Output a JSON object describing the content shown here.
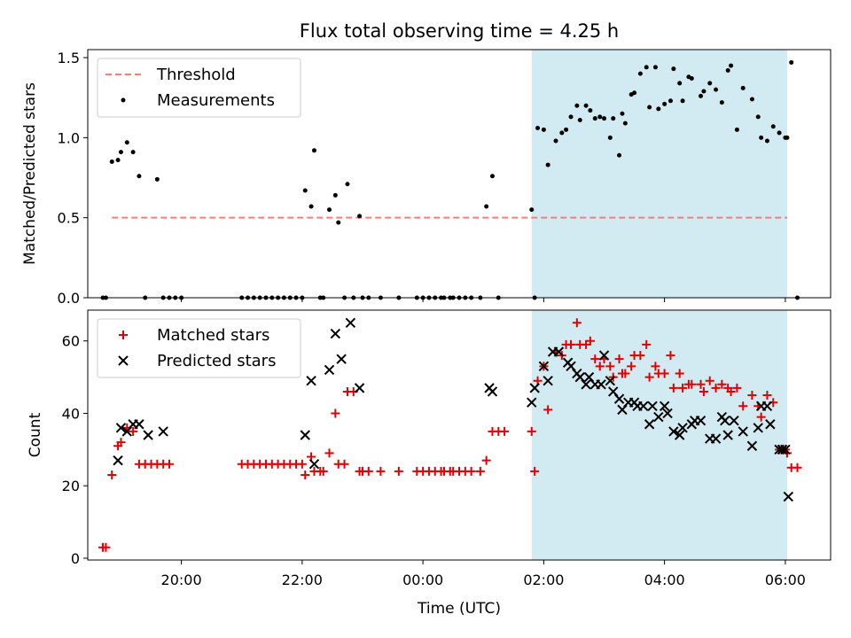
{
  "title": "Flux total observing time = 4.25 h",
  "colors": {
    "threshold": "#f08080",
    "measurement": "#000000",
    "matched": "#e00000",
    "predicted": "#000000",
    "shade": "#add8e6"
  },
  "chart_data": [
    {
      "type": "scatter",
      "panel": "top",
      "ylabel": "Matched/Predicted stars",
      "ylim": [
        0,
        1.55
      ],
      "yticks": [
        "0.0",
        "0.5",
        "1.0",
        "1.5"
      ],
      "xlim": [
        18.45,
        30.75
      ],
      "shaded_region": [
        25.8,
        30.03
      ],
      "legend": {
        "position": "top-left",
        "threshold_label": "Threshold",
        "measurements_label": "Measurements"
      },
      "series": [
        {
          "name": "Threshold",
          "kind": "dashed-line",
          "x": [
            18.85,
            30.03
          ],
          "y": [
            0.5,
            0.5
          ]
        },
        {
          "name": "Measurements",
          "kind": "points",
          "x": [
            18.7,
            18.75,
            18.85,
            18.95,
            19.0,
            19.1,
            19.2,
            19.3,
            19.4,
            19.6,
            19.7,
            19.8,
            19.9,
            20.0,
            21.0,
            21.1,
            21.2,
            21.3,
            21.4,
            21.5,
            21.6,
            21.7,
            21.8,
            21.9,
            22.0,
            22.05,
            22.15,
            22.2,
            22.3,
            22.35,
            22.45,
            22.55,
            22.6,
            22.7,
            22.75,
            22.85,
            22.95,
            23.0,
            23.1,
            23.3,
            23.6,
            23.9,
            24.0,
            24.1,
            24.2,
            24.3,
            24.35,
            24.45,
            24.5,
            24.6,
            24.7,
            24.8,
            24.95,
            25.05,
            25.15,
            25.25,
            25.8,
            25.85,
            25.9,
            26.0,
            26.07,
            26.2,
            26.3,
            26.37,
            26.45,
            26.55,
            26.6,
            26.7,
            26.77,
            26.85,
            26.93,
            27.0,
            27.1,
            27.15,
            27.25,
            27.3,
            27.35,
            27.45,
            27.5,
            27.6,
            27.7,
            27.75,
            27.85,
            27.9,
            28.0,
            28.1,
            28.15,
            28.25,
            28.3,
            28.4,
            28.45,
            28.6,
            28.65,
            28.75,
            28.85,
            28.95,
            29.05,
            29.1,
            29.2,
            29.3,
            29.45,
            29.55,
            29.6,
            29.7,
            29.8,
            29.9,
            30.0,
            30.03,
            30.1,
            30.2
          ],
          "y": [
            0,
            0,
            0.85,
            0.86,
            0.91,
            0.97,
            0.91,
            0.76,
            0,
            0.74,
            0,
            0,
            0,
            0,
            0,
            0,
            0,
            0,
            0,
            0,
            0,
            0,
            0,
            0,
            0,
            0.67,
            0.57,
            0.92,
            0,
            0,
            0.55,
            0.64,
            0.47,
            0,
            0.71,
            0,
            0.51,
            0,
            0,
            0,
            0,
            0,
            0,
            0,
            0,
            0,
            0,
            0,
            0,
            0,
            0,
            0,
            0,
            0.57,
            0.76,
            0,
            0.55,
            0,
            1.06,
            1.05,
            0.83,
            0.98,
            1.03,
            1.05,
            1.13,
            1.2,
            1.11,
            1.2,
            1.17,
            1.12,
            1.13,
            1.12,
            1.0,
            1.12,
            0.89,
            1.15,
            1.09,
            1.27,
            1.28,
            1.4,
            1.44,
            1.19,
            1.44,
            1.18,
            1.21,
            1.23,
            1.43,
            1.34,
            1.23,
            1.38,
            1.37,
            1.26,
            1.29,
            1.34,
            1.3,
            1.22,
            1.42,
            1.45,
            1.05,
            1.31,
            1.24,
            1.13,
            1.0,
            0.98,
            1.07,
            1.03,
            1.0,
            1.0,
            1.47,
            0
          ]
        }
      ]
    },
    {
      "type": "scatter",
      "panel": "bottom",
      "ylabel": "Count",
      "xlabel": "Time (UTC)",
      "ylim": [
        -0.5,
        68.5
      ],
      "yticks": [
        "0",
        "20",
        "40",
        "60"
      ],
      "xticks": [
        "20:00",
        "22:00",
        "00:00",
        "02:00",
        "04:00",
        "06:00"
      ],
      "xtick_values": [
        20,
        22,
        24,
        26,
        28,
        30
      ],
      "xlim": [
        18.45,
        30.75
      ],
      "shaded_region": [
        25.8,
        30.03
      ],
      "legend": {
        "position": "top-left",
        "matched_label": "Matched stars",
        "predicted_label": "Predicted stars"
      },
      "series": [
        {
          "name": "Matched stars",
          "kind": "plus",
          "x": [
            18.7,
            18.75,
            18.85,
            18.95,
            19.0,
            19.1,
            19.2,
            19.3,
            19.4,
            19.5,
            19.6,
            19.7,
            19.8,
            21.0,
            21.1,
            21.2,
            21.3,
            21.4,
            21.5,
            21.6,
            21.7,
            21.8,
            21.9,
            22.0,
            22.05,
            22.15,
            22.2,
            22.3,
            22.35,
            22.45,
            22.55,
            22.6,
            22.7,
            22.75,
            22.85,
            22.95,
            23.0,
            23.1,
            23.3,
            23.6,
            23.9,
            24.0,
            24.1,
            24.2,
            24.3,
            24.35,
            24.45,
            24.5,
            24.6,
            24.7,
            24.8,
            24.95,
            25.05,
            25.15,
            25.25,
            25.35,
            25.8,
            25.85,
            25.9,
            26.0,
            26.07,
            26.2,
            26.3,
            26.37,
            26.45,
            26.55,
            26.6,
            26.7,
            26.77,
            26.85,
            26.93,
            27.0,
            27.1,
            27.15,
            27.25,
            27.3,
            27.35,
            27.45,
            27.5,
            27.6,
            27.7,
            27.75,
            27.85,
            27.9,
            28.0,
            28.1,
            28.15,
            28.25,
            28.3,
            28.4,
            28.45,
            28.6,
            28.65,
            28.75,
            28.85,
            28.95,
            29.05,
            29.1,
            29.2,
            29.3,
            29.45,
            29.55,
            29.6,
            29.7,
            29.8,
            29.9,
            30.0,
            30.03,
            30.1,
            30.2
          ],
          "y": [
            3,
            3,
            23,
            31,
            32,
            36,
            35,
            26,
            26,
            26,
            26,
            26,
            26,
            26,
            26,
            26,
            26,
            26,
            26,
            26,
            26,
            26,
            26,
            26,
            23,
            28,
            24,
            24,
            24,
            29,
            40,
            26,
            26,
            46,
            46,
            24,
            24,
            24,
            24,
            24,
            24,
            24,
            24,
            24,
            24,
            24,
            24,
            24,
            24,
            24,
            24,
            24,
            27,
            35,
            35,
            35,
            35,
            24,
            49,
            53,
            41,
            57,
            56,
            59,
            59,
            65,
            59,
            59,
            60,
            55,
            53,
            55,
            53,
            50,
            55,
            51,
            51,
            53,
            56,
            56,
            59,
            50,
            53,
            51,
            51,
            56,
            47,
            51,
            47,
            48,
            48,
            48,
            46,
            49,
            47,
            48,
            47,
            46,
            47,
            42,
            45,
            42,
            39,
            45,
            43,
            30,
            30,
            29,
            25,
            25
          ]
        },
        {
          "name": "Predicted stars",
          "kind": "cross",
          "x": [
            18.95,
            19.0,
            19.1,
            19.2,
            19.3,
            19.45,
            19.7,
            22.05,
            22.15,
            22.2,
            22.45,
            22.55,
            22.65,
            22.8,
            22.95,
            25.1,
            25.15,
            25.8,
            25.85,
            26.0,
            26.07,
            26.15,
            26.25,
            26.4,
            26.45,
            26.55,
            26.6,
            26.7,
            26.75,
            26.85,
            26.95,
            27.0,
            27.1,
            27.15,
            27.25,
            27.3,
            27.4,
            27.5,
            27.55,
            27.65,
            27.75,
            27.8,
            27.9,
            28.0,
            28.05,
            28.15,
            28.25,
            28.3,
            28.45,
            28.5,
            28.6,
            28.75,
            28.85,
            28.95,
            29.0,
            29.05,
            29.15,
            29.3,
            29.45,
            29.55,
            29.6,
            29.7,
            29.75,
            29.9,
            29.95,
            30.0,
            30.05
          ],
          "y": [
            27,
            36,
            35,
            37,
            37,
            34,
            35,
            34,
            49,
            26,
            52,
            62,
            55,
            65,
            47,
            47,
            46,
            43,
            47,
            53,
            49,
            57,
            57,
            54,
            53,
            51,
            50,
            48,
            50,
            48,
            48,
            56,
            49,
            46,
            44,
            41,
            43,
            43,
            42,
            42,
            37,
            42,
            39,
            42,
            40,
            35,
            34,
            36,
            37,
            38,
            38,
            33,
            33,
            39,
            38,
            34,
            38,
            35,
            31,
            36,
            42,
            42,
            37,
            30,
            30,
            30,
            17
          ]
        }
      ]
    }
  ]
}
